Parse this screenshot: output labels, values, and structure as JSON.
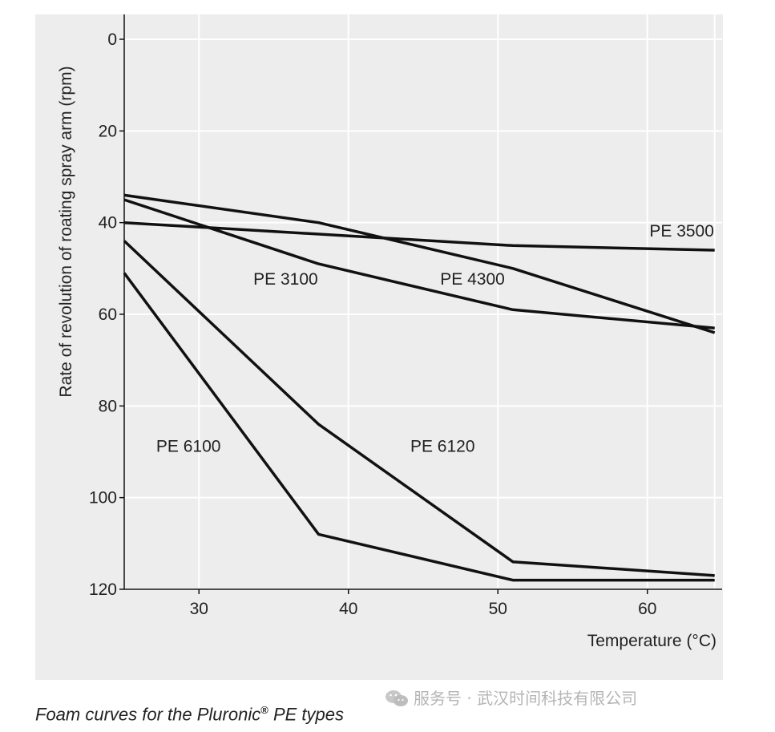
{
  "chart_data": {
    "type": "line",
    "ylabel": "Rate of revolution of roating spray arm (rpm)",
    "xlabel": "Temperature (°C)",
    "xlim": [
      25,
      65
    ],
    "ylim": [
      0,
      120
    ],
    "y_inverted": true,
    "x_ticks": [
      30,
      40,
      50,
      60
    ],
    "y_ticks": [
      0,
      20,
      40,
      60,
      80,
      100,
      120
    ],
    "grid": true,
    "series": [
      {
        "name": "PE 3500",
        "points": [
          [
            25,
            40
          ],
          [
            51,
            45
          ],
          [
            64.5,
            46
          ]
        ]
      },
      {
        "name": "PE 4300",
        "points": [
          [
            25,
            34
          ],
          [
            38,
            40
          ],
          [
            51,
            50
          ],
          [
            64.5,
            64
          ]
        ]
      },
      {
        "name": "PE 3100",
        "points": [
          [
            25,
            35
          ],
          [
            38,
            49
          ],
          [
            51,
            59
          ],
          [
            64.5,
            63
          ]
        ]
      },
      {
        "name": "PE 6120",
        "points": [
          [
            25,
            44
          ],
          [
            38,
            84
          ],
          [
            51,
            114
          ],
          [
            64.5,
            117
          ]
        ]
      },
      {
        "name": "PE 6100",
        "points": [
          [
            25,
            51
          ],
          [
            38,
            108
          ],
          [
            51,
            118
          ],
          [
            64.5,
            118
          ]
        ]
      }
    ]
  },
  "caption": {
    "text": "Foam curves for the Pluronic",
    "sup": "®",
    "suffix": " PE types"
  },
  "watermark": "服务号 · 武汉时间科技有限公司"
}
